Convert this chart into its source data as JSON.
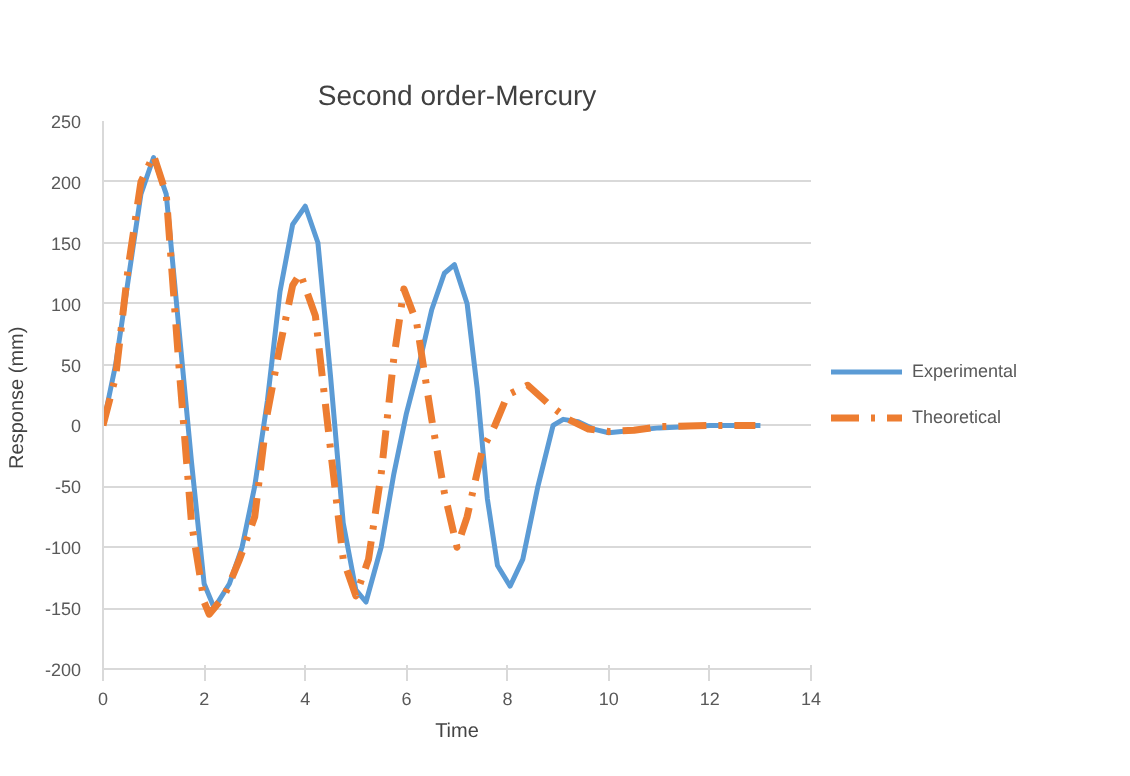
{
  "chart_data": {
    "type": "line",
    "title": "Second order-Mercury",
    "xlabel": "Time",
    "ylabel": "Response  (mm)",
    "xlim": [
      0,
      14
    ],
    "xticks": [
      0,
      2,
      4,
      6,
      8,
      10,
      12,
      14
    ],
    "ylim": [
      -200,
      250
    ],
    "yticks": [
      -200,
      -150,
      -100,
      -50,
      0,
      50,
      100,
      150,
      200,
      250
    ],
    "grid": "y",
    "legend": "right",
    "marker": "none",
    "series": [
      {
        "name": "Experimental",
        "color": "#5b9bd5",
        "line_style": "solid",
        "x": [
          0,
          0.25,
          0.5,
          0.75,
          1.0,
          1.25,
          1.5,
          1.75,
          2.0,
          2.2,
          2.5,
          2.75,
          3.0,
          3.25,
          3.5,
          3.75,
          4.0,
          4.25,
          4.5,
          4.75,
          5.0,
          5.2,
          5.5,
          5.75,
          6.0,
          6.25,
          6.5,
          6.75,
          6.95,
          7.2,
          7.4,
          7.6,
          7.8,
          8.05,
          8.3,
          8.6,
          8.9,
          9.1,
          9.4,
          9.7,
          10,
          10.5,
          11,
          12,
          13
        ],
        "values": [
          0,
          50,
          120,
          190,
          220,
          190,
          80,
          -30,
          -130,
          -150,
          -130,
          -100,
          -50,
          20,
          110,
          165,
          180,
          150,
          40,
          -80,
          -135,
          -145,
          -100,
          -40,
          10,
          50,
          95,
          125,
          132,
          100,
          30,
          -60,
          -115,
          -132,
          -110,
          -50,
          0,
          5,
          3,
          -3,
          -6,
          -4,
          -2,
          0,
          0
        ]
      },
      {
        "name": "Theoretical",
        "color": "#ed7d31",
        "line_style": "dashed",
        "x": [
          0,
          0.25,
          0.5,
          0.75,
          1.0,
          1.25,
          1.5,
          1.75,
          2.0,
          2.1,
          2.4,
          2.7,
          3.0,
          3.25,
          3.5,
          3.75,
          3.9,
          4.2,
          4.5,
          4.75,
          5.0,
          5.25,
          5.5,
          5.75,
          5.95,
          6.2,
          6.5,
          6.75,
          7.0,
          7.2,
          7.5,
          7.75,
          8.0,
          8.4,
          8.8,
          9.2,
          9.6,
          10,
          10.5,
          11,
          12,
          12.9
        ],
        "values": [
          0,
          40,
          130,
          200,
          222,
          190,
          50,
          -80,
          -145,
          -155,
          -140,
          -110,
          -75,
          10,
          65,
          115,
          125,
          90,
          -20,
          -110,
          -140,
          -110,
          -40,
          55,
          112,
          85,
          5,
          -55,
          -100,
          -75,
          -20,
          0,
          25,
          33,
          18,
          5,
          -3,
          -5,
          -4,
          -1,
          0,
          0
        ]
      }
    ]
  }
}
